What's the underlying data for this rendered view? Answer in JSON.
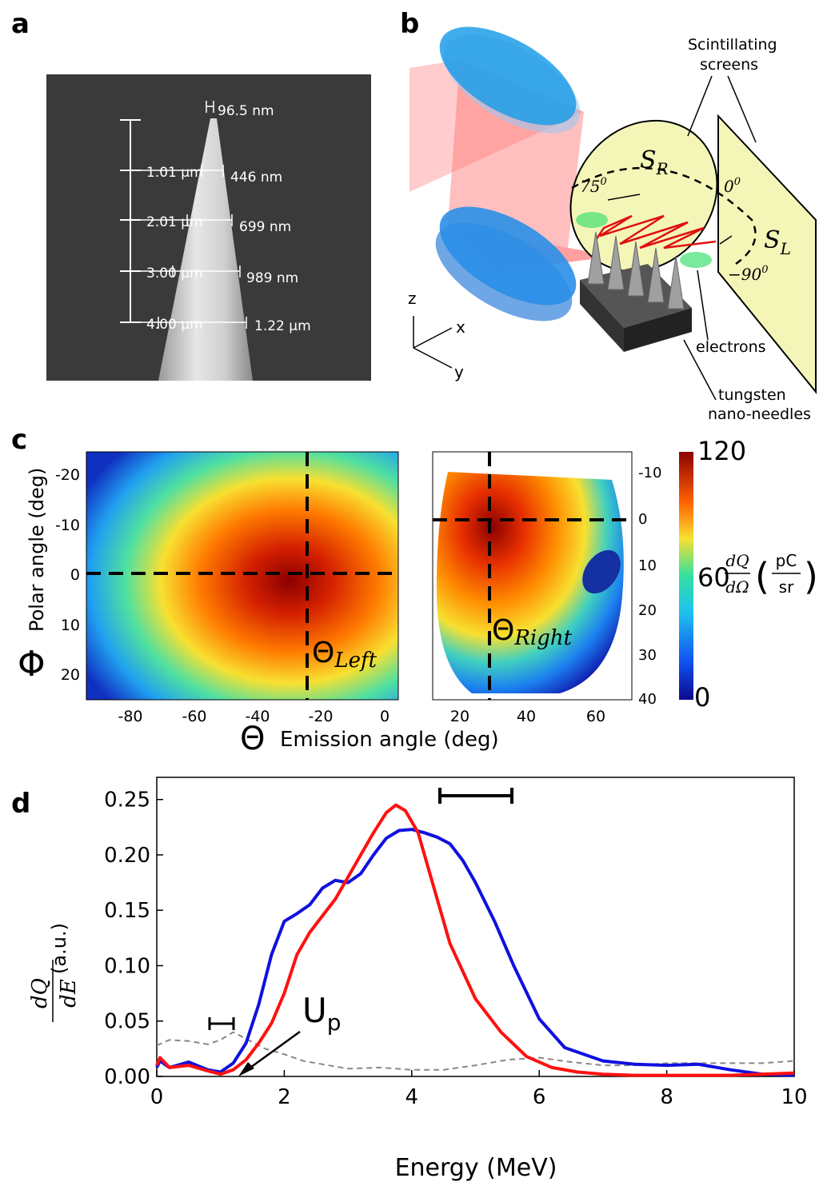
{
  "panel_labels": {
    "a": "a",
    "b": "b",
    "c": "c",
    "d": "d"
  },
  "panel_a": {
    "scale_labels": [
      "1.01 µm",
      "2.01 µm",
      "3.00 µm",
      "4.00 µm"
    ],
    "width_labels": [
      "96.5 nm",
      "446 nm",
      "699 nm",
      "989 nm",
      "1.22 µm"
    ]
  },
  "panel_b": {
    "scintillating_label_line1": "Scintillating",
    "scintillating_label_line2": "screens",
    "screen_right": "S",
    "screen_right_sub": "R",
    "screen_left": "S",
    "screen_left_sub": "L",
    "angle_75": "75",
    "angle_0": "0",
    "angle_m90": "−90",
    "deg_sup": "0",
    "electrons": "electrons",
    "tungsten_line1": "tungsten",
    "tungsten_line2": "nano-needles",
    "axis_z": "z",
    "axis_x": "x",
    "axis_y": "y"
  },
  "panel_c": {
    "ylabel": "Polar angle (deg)",
    "ylabel_symbol": "Φ",
    "xlabel": "Emission angle (deg)",
    "xlabel_symbol": "Θ",
    "left_yticks": [
      "-20",
      "-10",
      "0",
      "10",
      "20"
    ],
    "left_xticks": [
      "-80",
      "-60",
      "-40",
      "-20",
      "0"
    ],
    "right_yticks": [
      "-10",
      "0",
      "10",
      "20",
      "30",
      "40"
    ],
    "right_xticks": [
      "20",
      "40",
      "60"
    ],
    "theta_left": "Θ",
    "theta_left_sub": "Left",
    "theta_right": "Θ",
    "theta_right_sub": "Right",
    "colorbar_ticks": [
      "120",
      "60",
      "0"
    ],
    "colorbar_label_num": "dQ",
    "colorbar_label_den": "dΩ",
    "colorbar_unit_num": "pC",
    "colorbar_unit_den": "sr",
    "colors": {
      "low": "#0a0a8c",
      "mid": "#33e0a0",
      "high": "#8b0000"
    }
  },
  "chart_data": {
    "type": "line",
    "xlabel": "Energy (MeV)",
    "ylabel_num": "dQ",
    "ylabel_den": "dE",
    "ylabel_unit": "(a.u.)",
    "xlim": [
      0,
      10
    ],
    "ylim": [
      0,
      0.27
    ],
    "xticks": [
      "0",
      "2",
      "4",
      "6",
      "8",
      "10"
    ],
    "yticks": [
      "0.00",
      "0.05",
      "0.10",
      "0.15",
      "0.20",
      "0.25"
    ],
    "annotation": "U",
    "annotation_sub": "p",
    "series": [
      {
        "color": "#1010e0",
        "x": [
          0,
          0.05,
          0.2,
          0.5,
          0.8,
          1.0,
          1.2,
          1.4,
          1.6,
          1.8,
          2.0,
          2.2,
          2.4,
          2.6,
          2.8,
          3.0,
          3.2,
          3.4,
          3.6,
          3.8,
          4.0,
          4.2,
          4.4,
          4.6,
          4.8,
          5.0,
          5.3,
          5.6,
          6.0,
          6.4,
          7.0,
          7.5,
          8.0,
          8.5,
          9.0,
          9.5,
          10.0
        ],
        "y": [
          0.008,
          0.014,
          0.008,
          0.013,
          0.006,
          0.004,
          0.012,
          0.03,
          0.065,
          0.11,
          0.14,
          0.147,
          0.155,
          0.17,
          0.177,
          0.175,
          0.183,
          0.2,
          0.215,
          0.222,
          0.223,
          0.22,
          0.216,
          0.21,
          0.195,
          0.175,
          0.14,
          0.1,
          0.052,
          0.026,
          0.014,
          0.011,
          0.01,
          0.011,
          0.006,
          0.002,
          0.001
        ]
      },
      {
        "color": "#ff1010",
        "x": [
          0,
          0.05,
          0.2,
          0.5,
          0.8,
          1.0,
          1.2,
          1.4,
          1.6,
          1.8,
          2.0,
          2.2,
          2.4,
          2.6,
          2.8,
          3.0,
          3.2,
          3.4,
          3.6,
          3.75,
          3.9,
          4.1,
          4.3,
          4.6,
          5.0,
          5.4,
          5.8,
          6.2,
          6.6,
          7.0,
          7.5,
          8.0,
          9.0,
          10.0
        ],
        "y": [
          0.01,
          0.017,
          0.008,
          0.01,
          0.005,
          0.002,
          0.006,
          0.015,
          0.03,
          0.048,
          0.075,
          0.11,
          0.13,
          0.145,
          0.16,
          0.18,
          0.2,
          0.22,
          0.238,
          0.245,
          0.24,
          0.22,
          0.18,
          0.12,
          0.07,
          0.04,
          0.018,
          0.008,
          0.004,
          0.002,
          0.001,
          0.001,
          0.001,
          0.003
        ]
      },
      {
        "color": "#888888",
        "dashed": true,
        "x": [
          0,
          0.2,
          0.5,
          0.8,
          1.0,
          1.2,
          1.4,
          1.7,
          2.0,
          2.3,
          2.6,
          3.0,
          3.5,
          4.0,
          4.5,
          5.0,
          5.5,
          6.0,
          6.5,
          7.0,
          7.5,
          8.0,
          8.5,
          9.0,
          9.5,
          10.0
        ],
        "y": [
          0.028,
          0.033,
          0.032,
          0.029,
          0.033,
          0.04,
          0.034,
          0.025,
          0.02,
          0.014,
          0.011,
          0.007,
          0.008,
          0.006,
          0.006,
          0.01,
          0.015,
          0.017,
          0.013,
          0.01,
          0.01,
          0.012,
          0.012,
          0.012,
          0.012,
          0.014
        ]
      }
    ]
  }
}
